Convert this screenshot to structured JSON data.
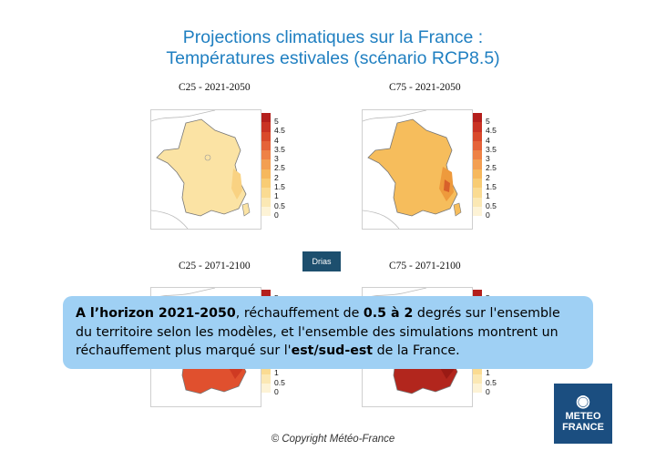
{
  "title_line1": "Projections climatiques sur la France :",
  "title_line2": "Températures estivales (scénario RCP8.5)",
  "panels": [
    {
      "title": "C25 - 2021-2050",
      "fill": "#fbe3a4",
      "east": "#f9d282"
    },
    {
      "title": "C75 - 2021-2050",
      "fill": "#f6bd5c",
      "east": "#ee9a3c"
    },
    {
      "title": "C25 - 2071-2100",
      "fill": "#e0502e",
      "east": "#cf3a22"
    },
    {
      "title": "C75 - 2071-2100",
      "fill": "#b2261d",
      "east": "#9a1a14"
    }
  ],
  "scale": {
    "labels": [
      "5",
      "4.5",
      "4",
      "3.5",
      "3",
      "2.5",
      "2",
      "1.5",
      "1",
      "0.5",
      "0"
    ],
    "colors": [
      "#b41f1c",
      "#c93324",
      "#d94a2c",
      "#e5633a",
      "#ee8246",
      "#f39f52",
      "#f6b85d",
      "#f8cc74",
      "#fadb92",
      "#fbe8b4",
      "#fdf3d6"
    ]
  },
  "drias_label": "Drias",
  "callout": {
    "p1_bold": "A l’horizon 2021-2050",
    "p2": ", réchauffement de ",
    "p3_bold": "0.5 à 2",
    "p4": " degrés sur l'ensemble du territoire selon les modèles, et l'ensemble des simulations montrent un réchauffement plus marqué sur l'",
    "p5_bold": "est/sud-est",
    "p6": " de la France."
  },
  "logo": {
    "line1": "METEO",
    "line2": "FRANCE"
  },
  "copyright": "© Copyright Météo-France"
}
